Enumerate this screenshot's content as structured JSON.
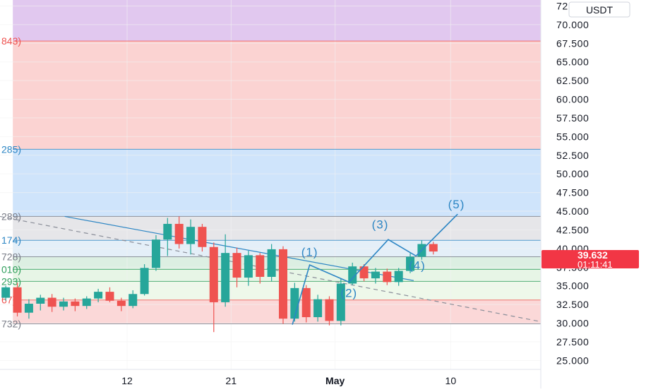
{
  "quote_currency": "USDT",
  "last_price": "39.632",
  "countdown": "01:11:41",
  "colors": {
    "up": "#26a69a",
    "down": "#ef5350",
    "line": "#2d86c4",
    "grid": "#f2f2f2",
    "axis_text": "#131722",
    "price_tag": "#f23645"
  },
  "chart_data": {
    "type": "candlestick",
    "y_axis_ticks": [
      "25.000",
      "27.500",
      "30.000",
      "32.500",
      "35.000",
      "37.500",
      "40.000",
      "42.500",
      "45.000",
      "47.500",
      "50.000",
      "52.500",
      "55.000",
      "57.500",
      "60.000",
      "62.500",
      "65.000",
      "67.500",
      "70.000",
      "72.500"
    ],
    "ylim": [
      23.8,
      73.3
    ],
    "x_axis_ticks": [
      {
        "label": "12",
        "day": 12
      },
      {
        "label": "21",
        "day": 21
      },
      {
        "label": "May",
        "day": 30
      },
      {
        "label": "10",
        "day": 40
      }
    ],
    "xlim": [
      1.0,
      47.8
    ],
    "fib_levels": [
      {
        "label": "843)",
        "price": 67.8,
        "label_color": "#ef5350"
      },
      {
        "label": "285)",
        "price": 53.3,
        "label_color": "#2d86c4"
      },
      {
        "label": "289)",
        "price": 44.3,
        "label_color": "#787b86"
      },
      {
        "label": "174)",
        "price": 41.1,
        "label_color": "#2d86c4"
      },
      {
        "label": "728)",
        "price": 38.9,
        "label_color": "#787b86"
      },
      {
        "label": "010)",
        "price": 37.2,
        "label_color": "#2e9e5b"
      },
      {
        "label": "293)",
        "price": 35.6,
        "label_color": "#2e9e5b"
      },
      {
        "label": "67)",
        "price": 33.1,
        "label_color": "#ef5350"
      },
      {
        "label": "732)",
        "price": 29.9,
        "label_color": "#787b86"
      }
    ],
    "zones": [
      {
        "from": 67.8,
        "to": 73.3,
        "color": "#e1c8ef"
      },
      {
        "from": 53.3,
        "to": 67.8,
        "color": "#fbd3d2"
      },
      {
        "from": 44.3,
        "to": 53.3,
        "color": "#cfe4fb"
      },
      {
        "from": 41.1,
        "to": 44.3,
        "color": "#e6e6e9"
      },
      {
        "from": 38.9,
        "to": 41.1,
        "color": "#e4eff8"
      },
      {
        "from": 37.2,
        "to": 38.9,
        "color": "#dcefe2"
      },
      {
        "from": 35.6,
        "to": 37.2,
        "color": "#e7f5e6"
      },
      {
        "from": 33.1,
        "to": 35.6,
        "color": "#eef8ea"
      },
      {
        "from": 29.9,
        "to": 33.1,
        "color": "#fbd8d8"
      }
    ],
    "candles_daily": [
      {
        "day": 1.5,
        "o": 33.4,
        "h": 35.0,
        "l": 33.0,
        "c": 34.8
      },
      {
        "day": 2.5,
        "o": 34.8,
        "h": 35.4,
        "l": 30.9,
        "c": 31.4
      },
      {
        "day": 3.5,
        "o": 31.4,
        "h": 33.2,
        "l": 30.6,
        "c": 32.6
      },
      {
        "day": 4.5,
        "o": 32.6,
        "h": 33.8,
        "l": 31.7,
        "c": 33.4
      },
      {
        "day": 5.5,
        "o": 33.4,
        "h": 33.9,
        "l": 31.5,
        "c": 32.2
      },
      {
        "day": 6.5,
        "o": 32.2,
        "h": 33.4,
        "l": 31.7,
        "c": 32.9
      },
      {
        "day": 7.5,
        "o": 32.9,
        "h": 33.3,
        "l": 31.6,
        "c": 32.3
      },
      {
        "day": 8.5,
        "o": 32.3,
        "h": 33.6,
        "l": 31.9,
        "c": 33.3
      },
      {
        "day": 9.5,
        "o": 33.3,
        "h": 34.6,
        "l": 32.8,
        "c": 34.2
      },
      {
        "day": 10.5,
        "o": 34.2,
        "h": 34.8,
        "l": 32.8,
        "c": 33.0
      },
      {
        "day": 11.5,
        "o": 33.0,
        "h": 33.4,
        "l": 31.6,
        "c": 32.3
      },
      {
        "day": 12.5,
        "o": 32.3,
        "h": 34.4,
        "l": 32.0,
        "c": 33.9
      },
      {
        "day": 13.5,
        "o": 33.9,
        "h": 37.9,
        "l": 33.7,
        "c": 37.4
      },
      {
        "day": 14.5,
        "o": 37.4,
        "h": 41.8,
        "l": 37.0,
        "c": 41.2
      },
      {
        "day": 15.5,
        "o": 41.2,
        "h": 44.1,
        "l": 39.0,
        "c": 43.3
      },
      {
        "day": 16.5,
        "o": 43.3,
        "h": 44.3,
        "l": 40.0,
        "c": 40.6
      },
      {
        "day": 17.5,
        "o": 40.6,
        "h": 43.9,
        "l": 39.2,
        "c": 42.9
      },
      {
        "day": 18.5,
        "o": 42.9,
        "h": 43.3,
        "l": 39.6,
        "c": 40.2
      },
      {
        "day": 19.5,
        "o": 40.2,
        "h": 40.8,
        "l": 28.8,
        "c": 32.8
      },
      {
        "day": 20.5,
        "o": 32.8,
        "h": 41.9,
        "l": 32.2,
        "c": 39.4
      },
      {
        "day": 21.5,
        "o": 39.4,
        "h": 40.1,
        "l": 34.8,
        "c": 36.1
      },
      {
        "day": 22.5,
        "o": 36.1,
        "h": 39.7,
        "l": 35.0,
        "c": 39.1
      },
      {
        "day": 23.5,
        "o": 39.1,
        "h": 39.4,
        "l": 35.3,
        "c": 36.2
      },
      {
        "day": 24.5,
        "o": 36.2,
        "h": 40.6,
        "l": 35.6,
        "c": 39.9
      },
      {
        "day": 25.5,
        "o": 39.9,
        "h": 40.3,
        "l": 29.9,
        "c": 30.6
      },
      {
        "day": 26.5,
        "o": 30.6,
        "h": 35.4,
        "l": 30.2,
        "c": 34.7
      },
      {
        "day": 27.5,
        "o": 34.7,
        "h": 35.1,
        "l": 30.1,
        "c": 30.8
      },
      {
        "day": 28.5,
        "o": 30.8,
        "h": 33.8,
        "l": 30.2,
        "c": 33.2
      },
      {
        "day": 29.5,
        "o": 33.2,
        "h": 33.6,
        "l": 29.7,
        "c": 30.3
      },
      {
        "day": 30.5,
        "o": 30.3,
        "h": 36.0,
        "l": 29.7,
        "c": 35.3
      },
      {
        "day": 31.5,
        "o": 35.3,
        "h": 38.1,
        "l": 35.1,
        "c": 37.6
      },
      {
        "day": 32.5,
        "o": 37.6,
        "h": 37.9,
        "l": 35.6,
        "c": 36.0
      },
      {
        "day": 33.5,
        "o": 36.0,
        "h": 37.4,
        "l": 35.3,
        "c": 36.9
      },
      {
        "day": 34.5,
        "o": 36.9,
        "h": 37.3,
        "l": 35.1,
        "c": 35.5
      },
      {
        "day": 35.5,
        "o": 35.5,
        "h": 37.4,
        "l": 35.0,
        "c": 37.0
      },
      {
        "day": 36.5,
        "o": 37.0,
        "h": 39.4,
        "l": 36.7,
        "c": 38.9
      },
      {
        "day": 37.5,
        "o": 38.9,
        "h": 41.1,
        "l": 38.5,
        "c": 40.6
      },
      {
        "day": 38.5,
        "o": 40.6,
        "h": 40.9,
        "l": 39.2,
        "c": 39.6
      }
    ],
    "trendlines": [
      {
        "kind": "solid",
        "from": {
          "day": 6.6,
          "price": 44.3
        },
        "to": {
          "day": 36.8,
          "price": 35.7
        }
      },
      {
        "kind": "dashed",
        "from": {
          "day": 1.0,
          "price": 44.3
        },
        "to": {
          "day": 47.8,
          "price": 30.2
        }
      }
    ],
    "wave_path": [
      {
        "day": 26.3,
        "price": 29.8
      },
      {
        "day": 27.8,
        "price": 37.8
      },
      {
        "day": 31.2,
        "price": 35.5
      },
      {
        "day": 34.6,
        "price": 41.2
      },
      {
        "day": 37.0,
        "price": 39.0
      },
      {
        "day": 40.6,
        "price": 44.6
      }
    ],
    "wave_labels": [
      {
        "label": "(1)",
        "day": 27.8,
        "price": 39.0
      },
      {
        "label": "(2)",
        "day": 31.2,
        "price": 33.5
      },
      {
        "label": "(3)",
        "day": 33.9,
        "price": 42.7
      },
      {
        "label": "(4)",
        "day": 37.1,
        "price": 37.2
      },
      {
        "label": "(5)",
        "day": 40.5,
        "price": 45.4
      }
    ]
  }
}
